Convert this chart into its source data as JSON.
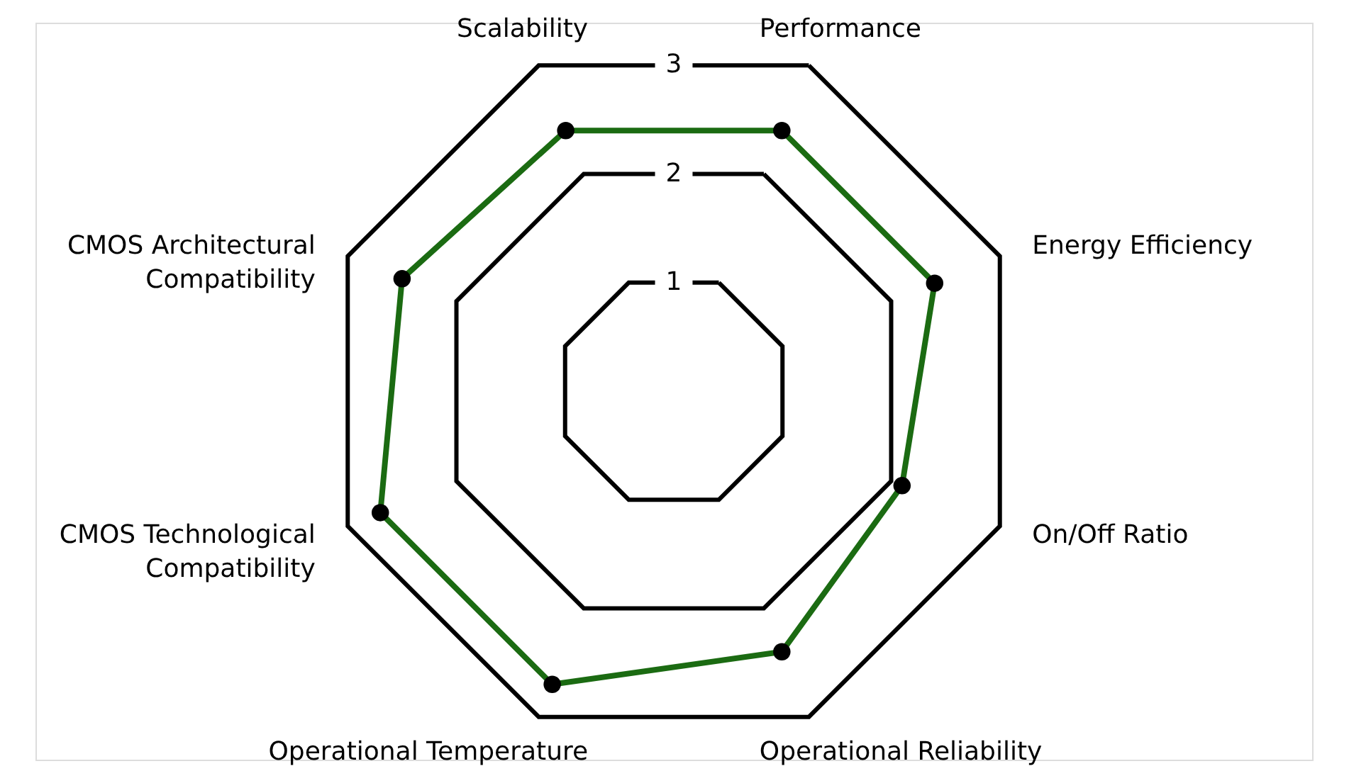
{
  "chart_data": {
    "type": "radar",
    "categories": [
      "Performance",
      "Energy Efficiency",
      "On/Off Ratio",
      "Operational Reliability",
      "Operational Temperature",
      "CMOS Technological Compatibility",
      "CMOS Architectural Compatibility",
      "Scalability"
    ],
    "series": [
      {
        "color": "#1b6b12",
        "values": [
          2.4,
          2.4,
          2.1,
          2.4,
          2.7,
          2.7,
          2.5,
          2.4
        ]
      }
    ],
    "ylim": [
      0,
      3
    ],
    "yticks": [
      1,
      2,
      3
    ],
    "marker": "circle",
    "line_style": "solid",
    "grid": true
  }
}
